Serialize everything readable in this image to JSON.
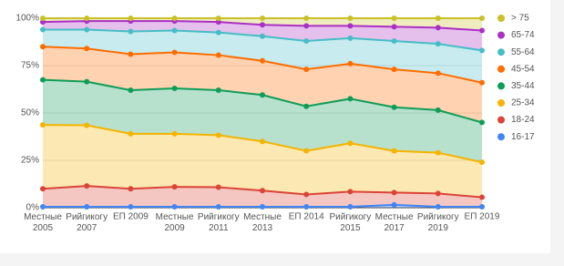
{
  "chart_data": {
    "type": "stacked-area",
    "categories": [
      "Местные\n2005",
      "Рийгикогу\n2007",
      "ЕП 2009",
      "Местные\n2009",
      "Рийгикогу\n2011",
      "Местные\n2013",
      "ЕП 2014",
      "Рийгикогу\n2015",
      "Местные\n2017",
      "Рийгикогу\n2019",
      "ЕП 2019"
    ],
    "series": [
      {
        "name": "16-17",
        "color": "#4285f4",
        "values": [
          0.5,
          0.5,
          0.5,
          0.5,
          0.5,
          0.5,
          0.5,
          0.5,
          1.5,
          0.5,
          0.5
        ]
      },
      {
        "name": "18-24",
        "color": "#db4437",
        "values": [
          9.5,
          11,
          9.5,
          10.5,
          10.3,
          8.5,
          6.5,
          8,
          6.5,
          7,
          5
        ]
      },
      {
        "name": "25-34",
        "color": "#f4b400",
        "values": [
          33.7,
          32,
          29,
          28,
          27.5,
          26,
          23,
          25.5,
          22,
          21.5,
          18.5
        ]
      },
      {
        "name": "35-44",
        "color": "#0f9d58",
        "values": [
          23.8,
          23,
          23,
          24,
          23.7,
          24.5,
          23.5,
          23.5,
          23,
          22.5,
          21
        ]
      },
      {
        "name": "45-54",
        "color": "#ff6d00",
        "values": [
          17.5,
          17.5,
          19,
          19,
          18.5,
          18,
          19.5,
          18.5,
          20,
          19.5,
          21
        ]
      },
      {
        "name": "55-64",
        "color": "#46bdc6",
        "values": [
          9,
          10,
          12,
          11.5,
          12,
          13,
          15,
          13.5,
          15,
          15.5,
          17
        ]
      },
      {
        "name": "65-74",
        "color": "#ab30c4",
        "values": [
          4,
          4.5,
          5.5,
          5,
          5.5,
          6,
          8,
          6.5,
          7.5,
          8.5,
          10.5
        ]
      },
      {
        "name": "> 75",
        "color": "#c9c12a",
        "values": [
          2,
          1.5,
          1.5,
          1.5,
          2,
          3.5,
          4,
          4,
          4.5,
          5,
          6.5
        ]
      }
    ],
    "ylim": [
      0,
      100
    ],
    "yticks": [
      {
        "value": 0,
        "label": "0%"
      },
      {
        "value": 25,
        "label": "25%"
      },
      {
        "value": 50,
        "label": "50%"
      },
      {
        "value": 75,
        "label": "75%"
      },
      {
        "value": 100,
        "label": "100%"
      }
    ],
    "grid": true,
    "legend": "right"
  }
}
